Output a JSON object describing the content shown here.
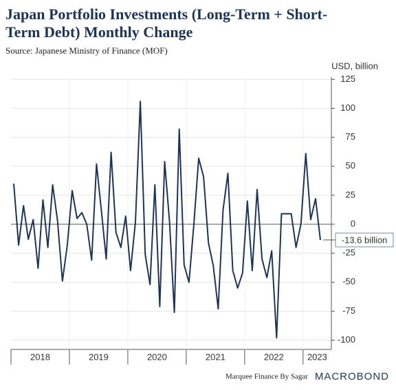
{
  "chart_data": {
    "type": "line",
    "title": [
      "Japan Portfolio Investments (Long-Term + Short-",
      "Term Debt) Monthly Change"
    ],
    "subtitle": "Source: Japanese Ministry of Finance (MOF)",
    "y_label": "USD, billion",
    "categories": [
      null,
      null,
      null,
      null,
      null,
      null,
      null,
      null,
      null,
      null,
      null,
      null,
      null,
      null,
      null,
      null,
      null,
      null,
      null,
      null,
      null,
      null,
      null,
      null,
      null,
      null,
      null,
      null,
      null,
      null,
      null,
      null,
      null,
      null,
      null,
      null,
      null,
      null,
      null,
      null,
      null,
      null,
      null,
      null,
      null,
      null,
      null,
      null,
      null,
      null,
      null,
      null,
      null,
      null,
      null,
      null,
      null,
      null,
      null,
      null,
      null,
      null,
      null,
      null
    ],
    "years": [
      "2018",
      "2019",
      "2020",
      "2021",
      "2022",
      "2023"
    ],
    "series": [
      {
        "name": "Japan Portfolio Investments",
        "color": "#1c3557",
        "values": [
          35,
          -18,
          16,
          -13,
          4,
          -38,
          21,
          -20,
          34,
          3,
          -49,
          -18,
          29,
          5,
          10,
          0,
          -31,
          52,
          12,
          -30,
          62,
          -7,
          -20,
          7,
          -40,
          2,
          106,
          -26,
          -52,
          34,
          -71,
          54,
          2,
          -76,
          82,
          -35,
          -50,
          0,
          57,
          41,
          -16,
          -36,
          -73,
          12,
          44,
          -40,
          -55,
          -42,
          20,
          -40,
          30,
          -30,
          -46,
          -23,
          -98,
          9,
          9,
          9,
          -20,
          0,
          61,
          4,
          22,
          -13.6
        ]
      }
    ],
    "last_label": "-13.6 billion",
    "ylim": [
      -108,
      127
    ],
    "yticks": [
      125,
      100,
      75,
      50,
      25,
      0,
      -25,
      -50,
      -75,
      -100
    ],
    "grid": true,
    "footer": "Marquee Finance By Sagar",
    "brand": "MACROBOND"
  }
}
